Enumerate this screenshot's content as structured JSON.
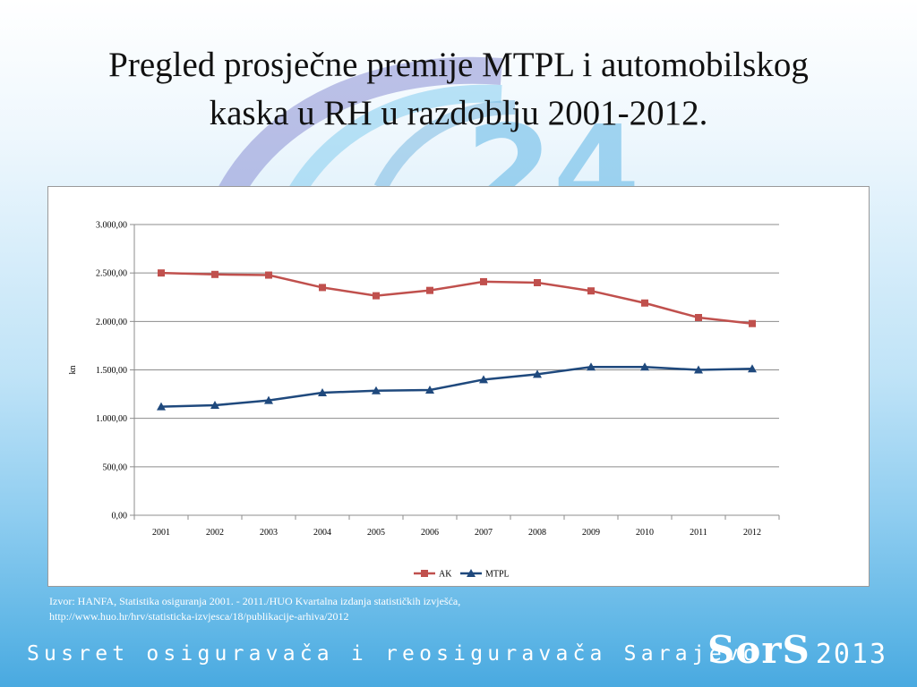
{
  "slide": {
    "title_line1": "Pregled prosječne premije MTPL i automobilskog",
    "title_line2": "kaska u RH u razdoblju 2001-2012.",
    "source_line1": "Izvor: HANFA, Statistika osiguranja 2001. - 2011./HUO Kvartalna izdanja statističkih izvješća,",
    "source_line2": "http://www.huo.hr/hrv/statisticka-izvjesca/18/publikacije-arhiva/2012",
    "footer_text": "Susret osiguravača i reosiguravača Sarajevo",
    "logo_name": "SorS",
    "logo_year": "2013",
    "background_watermark": "24"
  },
  "colors": {
    "ak": "#c0504d",
    "mtpl": "#1f497d",
    "grid": "#8c8c8c"
  },
  "chart_data": {
    "type": "line",
    "categories": [
      "2001",
      "2002",
      "2003",
      "2004",
      "2005",
      "2006",
      "2007",
      "2008",
      "2009",
      "2010",
      "2011",
      "2012"
    ],
    "series": [
      {
        "name": "AK",
        "marker": "square",
        "values": [
          2500,
          2485,
          2478,
          2350,
          2265,
          2320,
          2410,
          2400,
          2315,
          2190,
          2040,
          1978
        ]
      },
      {
        "name": "MTPL",
        "marker": "triangle",
        "values": [
          1120,
          1135,
          1185,
          1265,
          1285,
          1292,
          1400,
          1455,
          1530,
          1530,
          1500,
          1512
        ]
      }
    ],
    "ylabel": "kn",
    "ylim": [
      0,
      3000
    ],
    "yticks": [
      0,
      500,
      1000,
      1500,
      2000,
      2500,
      3000
    ],
    "ytick_labels": [
      "0,00",
      "500,00",
      "1.000,00",
      "1.500,00",
      "2.000,00",
      "2.500,00",
      "3.000,00"
    ],
    "grid": true,
    "legend_position": "bottom"
  }
}
